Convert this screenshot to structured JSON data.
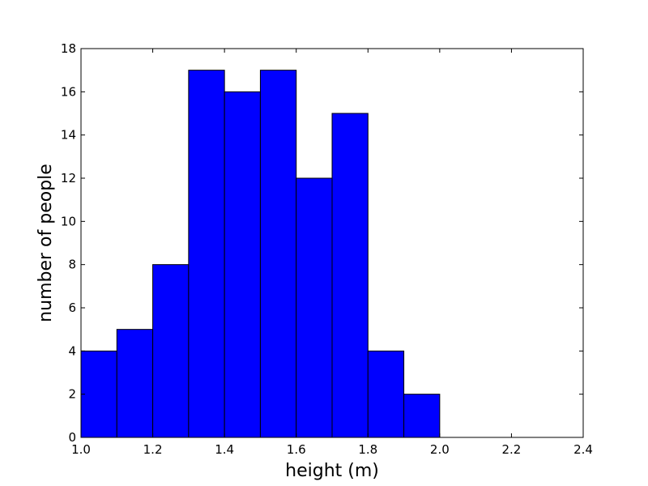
{
  "chart_data": {
    "type": "bar",
    "title": "",
    "xlabel": "height (m)",
    "ylabel": "number of people",
    "xlim": [
      1.0,
      2.4
    ],
    "ylim": [
      0,
      18
    ],
    "x_ticks": [
      "1.0",
      "1.2",
      "1.4",
      "1.6",
      "1.8",
      "2.0",
      "2.2",
      "2.4"
    ],
    "y_ticks": [
      "0",
      "2",
      "4",
      "6",
      "8",
      "10",
      "12",
      "14",
      "16",
      "18"
    ],
    "bins": [
      {
        "start": 1.0,
        "end": 1.1,
        "count": 4
      },
      {
        "start": 1.1,
        "end": 1.2,
        "count": 5
      },
      {
        "start": 1.2,
        "end": 1.3,
        "count": 8
      },
      {
        "start": 1.3,
        "end": 1.4,
        "count": 17
      },
      {
        "start": 1.4,
        "end": 1.5,
        "count": 16
      },
      {
        "start": 1.5,
        "end": 1.6,
        "count": 17
      },
      {
        "start": 1.6,
        "end": 1.7,
        "count": 12
      },
      {
        "start": 1.7,
        "end": 1.8,
        "count": 15
      },
      {
        "start": 1.8,
        "end": 1.9,
        "count": 4
      },
      {
        "start": 1.9,
        "end": 2.0,
        "count": 2
      }
    ],
    "bar_color": "#0000ff",
    "edge_color": "#000000",
    "grid": false
  }
}
